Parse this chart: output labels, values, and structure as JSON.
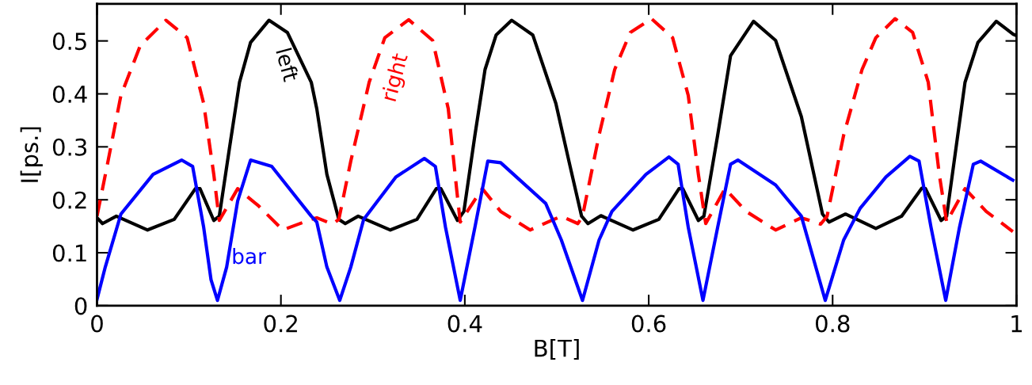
{
  "chart_data": {
    "type": "line",
    "xlabel": "B[T]",
    "ylabel": "I[ps.]",
    "xlim": [
      0,
      1
    ],
    "ylim": [
      0,
      0.57
    ],
    "xticks": [
      0,
      0.2,
      0.4,
      0.6,
      0.8,
      1
    ],
    "yticks": [
      0,
      0.1,
      0.2,
      0.3,
      0.4,
      0.5
    ],
    "grid": false,
    "legend": false,
    "marker": "none",
    "series": [
      {
        "name": "left",
        "color": "#000000",
        "line_style": "solid",
        "x": [
          0,
          0.006,
          0.021,
          0.055,
          0.084,
          0.107,
          0.112,
          0.127,
          0.133,
          0.144,
          0.155,
          0.167,
          0.187,
          0.207,
          0.233,
          0.239,
          0.25,
          0.263,
          0.27,
          0.284,
          0.319,
          0.348,
          0.369,
          0.374,
          0.392,
          0.399,
          0.411,
          0.422,
          0.434,
          0.451,
          0.474,
          0.499,
          0.514,
          0.527,
          0.534,
          0.548,
          0.583,
          0.611,
          0.633,
          0.637,
          0.654,
          0.66,
          0.675,
          0.689,
          0.714,
          0.738,
          0.766,
          0.789,
          0.796,
          0.814,
          0.847,
          0.875,
          0.897,
          0.901,
          0.918,
          0.924,
          0.944,
          0.958,
          0.978,
          0.996,
          1
        ],
        "values": [
          0.166,
          0.155,
          0.169,
          0.143,
          0.163,
          0.221,
          0.221,
          0.161,
          0.169,
          0.297,
          0.422,
          0.497,
          0.539,
          0.516,
          0.422,
          0.372,
          0.248,
          0.163,
          0.155,
          0.169,
          0.143,
          0.163,
          0.221,
          0.221,
          0.161,
          0.178,
          0.322,
          0.446,
          0.511,
          0.539,
          0.511,
          0.382,
          0.267,
          0.169,
          0.155,
          0.17,
          0.143,
          0.163,
          0.221,
          0.221,
          0.161,
          0.169,
          0.322,
          0.472,
          0.537,
          0.501,
          0.357,
          0.173,
          0.158,
          0.173,
          0.146,
          0.169,
          0.222,
          0.221,
          0.161,
          0.169,
          0.422,
          0.497,
          0.537,
          0.513,
          0.51
        ]
      },
      {
        "name": "right",
        "color": "#ff0000",
        "line_style": "dashed",
        "x": [
          0,
          0.012,
          0.026,
          0.047,
          0.075,
          0.098,
          0.116,
          0.127,
          0.133,
          0.153,
          0.176,
          0.202,
          0.233,
          0.239,
          0.256,
          0.263,
          0.276,
          0.296,
          0.313,
          0.339,
          0.365,
          0.382,
          0.391,
          0.395,
          0.419,
          0.439,
          0.471,
          0.497,
          0.505,
          0.523,
          0.528,
          0.546,
          0.563,
          0.58,
          0.603,
          0.626,
          0.643,
          0.654,
          0.662,
          0.683,
          0.706,
          0.738,
          0.766,
          0.787,
          0.794,
          0.812,
          0.832,
          0.847,
          0.868,
          0.887,
          0.904,
          0.916,
          0.924,
          0.944,
          0.967,
          0.996
        ],
        "values": [
          0.169,
          0.273,
          0.397,
          0.491,
          0.539,
          0.506,
          0.382,
          0.248,
          0.161,
          0.221,
          0.188,
          0.143,
          0.163,
          0.166,
          0.154,
          0.163,
          0.273,
          0.422,
          0.506,
          0.54,
          0.501,
          0.372,
          0.222,
          0.158,
          0.221,
          0.178,
          0.143,
          0.163,
          0.169,
          0.155,
          0.169,
          0.322,
          0.446,
          0.516,
          0.542,
          0.506,
          0.397,
          0.248,
          0.155,
          0.221,
          0.178,
          0.143,
          0.166,
          0.154,
          0.169,
          0.322,
          0.446,
          0.506,
          0.542,
          0.516,
          0.422,
          0.248,
          0.158,
          0.221,
          0.178,
          0.14
        ]
      },
      {
        "name": "bar",
        "color": "#0000ff",
        "line_style": "solid",
        "x": [
          0,
          0.009,
          0.026,
          0.061,
          0.092,
          0.104,
          0.116,
          0.124,
          0.131,
          0.141,
          0.153,
          0.167,
          0.19,
          0.233,
          0.239,
          0.25,
          0.264,
          0.276,
          0.29,
          0.325,
          0.356,
          0.368,
          0.379,
          0.395,
          0.411,
          0.425,
          0.439,
          0.488,
          0.505,
          0.528,
          0.546,
          0.56,
          0.597,
          0.622,
          0.632,
          0.643,
          0.659,
          0.675,
          0.689,
          0.697,
          0.738,
          0.766,
          0.792,
          0.812,
          0.83,
          0.858,
          0.884,
          0.894,
          0.907,
          0.923,
          0.938,
          0.953,
          0.961,
          0.996
        ],
        "values": [
          0.012,
          0.073,
          0.173,
          0.248,
          0.275,
          0.263,
          0.148,
          0.049,
          0.01,
          0.073,
          0.198,
          0.275,
          0.263,
          0.169,
          0.158,
          0.073,
          0.01,
          0.073,
          0.163,
          0.243,
          0.278,
          0.263,
          0.148,
          0.01,
          0.148,
          0.273,
          0.27,
          0.193,
          0.124,
          0.01,
          0.124,
          0.178,
          0.248,
          0.281,
          0.267,
          0.148,
          0.01,
          0.148,
          0.267,
          0.275,
          0.228,
          0.169,
          0.01,
          0.124,
          0.184,
          0.243,
          0.282,
          0.273,
          0.148,
          0.01,
          0.148,
          0.267,
          0.273,
          0.237
        ]
      }
    ]
  }
}
